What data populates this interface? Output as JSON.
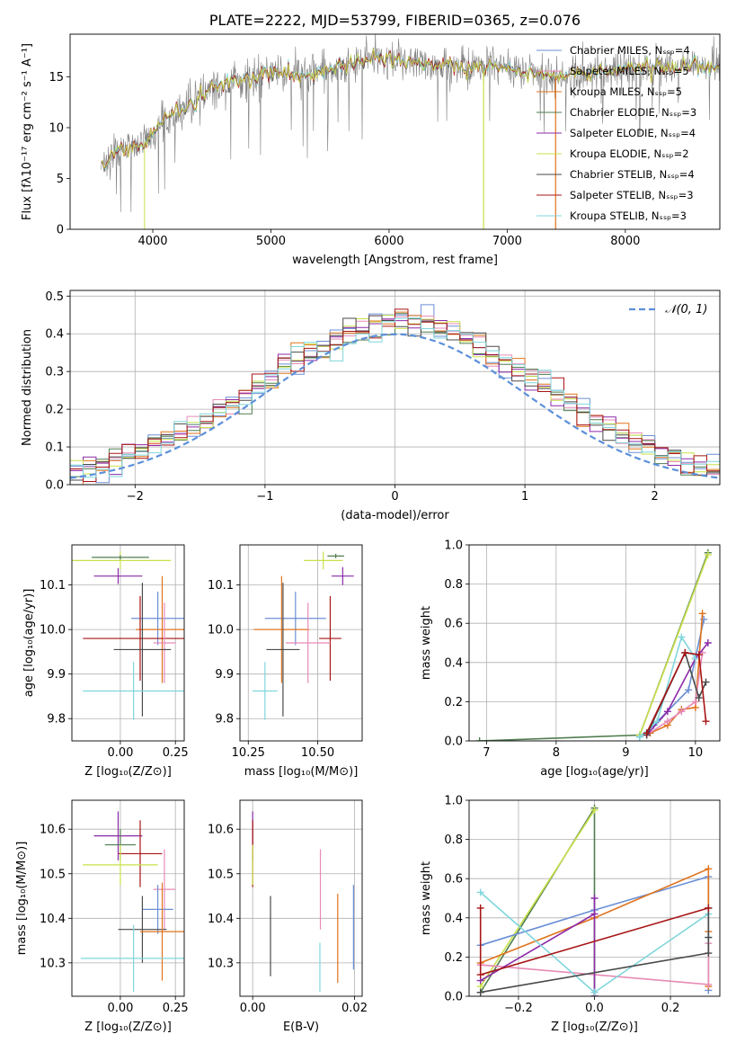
{
  "colors": {
    "Chabrier MILES": "#6b8fd6",
    "Salpeter MILES": "#e78ab6",
    "Kroupa MILES": "#e0731c",
    "Chabrier ELODIE": "#4f7d4f",
    "Salpeter ELODIE": "#8c2aa8",
    "Kroupa ELODIE": "#c9e04a",
    "Chabrier STELIB": "#4a4a4a",
    "Salpeter STELIB": "#a81515",
    "Kroupa STELIB": "#7fd6dc",
    "normal": "#5b8fd9",
    "grid": "#b0b0b0"
  },
  "chart_data": [
    {
      "id": "spectrum",
      "type": "line",
      "title": "PLATE=2222, MJD=53799, FIBERID=0365, z=0.076",
      "xlabel": "wavelength [Angstrom, rest frame]",
      "ylabel": "Flux [fλ10⁻¹⁷ erg cm⁻² s⁻¹ A⁻¹]",
      "xlim": [
        3300,
        8800
      ],
      "ylim": [
        0,
        19.2
      ],
      "xticks": [
        4000,
        5000,
        6000,
        7000,
        8000
      ],
      "yticks": [
        0,
        5,
        10,
        15
      ],
      "grid": false,
      "legend_position": "upper-right",
      "legend": [
        "Chabrier MILES, Nₛₛₚ=4",
        "Salpeter MILES, Nₛₛₚ=5",
        "Kroupa MILES, Nₛₛₚ=5",
        "Chabrier ELODIE, Nₛₛₚ=3",
        "Salpeter ELODIE, Nₛₛₚ=4",
        "Kroupa ELODIE, Nₛₛₚ=2",
        "Chabrier STELIB, Nₛₛₚ=4",
        "Salpeter STELIB, Nₛₛₚ=3",
        "Kroupa STELIB, Nₛₛₚ=3"
      ],
      "continuum": [
        [
          3550,
          6.0
        ],
        [
          3700,
          8.0
        ],
        [
          3850,
          8.0
        ],
        [
          3950,
          8.5
        ],
        [
          4100,
          10.8
        ],
        [
          4300,
          12.0
        ],
        [
          4500,
          14.0
        ],
        [
          4700,
          14.5
        ],
        [
          5000,
          15.5
        ],
        [
          5300,
          15.2
        ],
        [
          5600,
          16.0
        ],
        [
          5900,
          16.8
        ],
        [
          6300,
          16.3
        ],
        [
          6700,
          16.0
        ],
        [
          7000,
          15.8
        ],
        [
          7400,
          15.0
        ],
        [
          7800,
          15.5
        ],
        [
          8200,
          16.0
        ],
        [
          8800,
          16.0
        ]
      ]
    },
    {
      "id": "residuals",
      "type": "step-histogram",
      "xlabel": "(data-model)/error",
      "ylabel": "Normed distribution",
      "xlim": [
        -2.5,
        2.5
      ],
      "ylim": [
        0,
        0.515
      ],
      "xticks": [
        -2,
        -1,
        0,
        1,
        2
      ],
      "xtick_labels": [
        "−2",
        "−1",
        "0",
        "1",
        "2"
      ],
      "yticks": [
        0.0,
        0.1,
        0.2,
        0.3,
        0.4,
        0.5
      ],
      "grid": true,
      "legend": [
        "𝒩(0, 1)"
      ],
      "bin_width": 0.1,
      "reference_curve": "normal(0,1)"
    },
    {
      "id": "age-vs-Z",
      "type": "errorbar",
      "xlabel": "Z [log₁₀(Z/Z⊙)]",
      "ylabel": "age  [log₁₀(age/yr)]",
      "xlim": [
        -0.22,
        0.29
      ],
      "ylim": [
        9.75,
        10.19
      ],
      "xticks": [
        0.0,
        0.25
      ],
      "xtick_labels": [
        "0.00",
        "0.25"
      ],
      "yticks": [
        9.8,
        9.9,
        10.0,
        10.1
      ],
      "ytick_labels": [
        "9.8",
        "9.9",
        "10.0",
        "10.1"
      ],
      "grid": true,
      "points": [
        {
          "model": "Kroupa ELODIE",
          "x": 0.0,
          "xerr": 0.23,
          "y": 10.155,
          "yerr": 0.02
        },
        {
          "model": "Chabrier ELODIE",
          "x": 0.0,
          "xerr": 0.13,
          "y": 10.162,
          "yerr": 0.005
        },
        {
          "model": "Salpeter ELODIE",
          "x": -0.01,
          "xerr": 0.11,
          "y": 10.12,
          "yerr": 0.018
        },
        {
          "model": "Chabrier MILES",
          "x": 0.17,
          "xerr": 0.12,
          "y": 10.025,
          "yerr": 0.06
        },
        {
          "model": "Kroupa MILES",
          "x": 0.19,
          "xerr": 0.12,
          "y": 10.0,
          "yerr": 0.12
        },
        {
          "model": "Salpeter STELIB",
          "x": 0.09,
          "xerr": 0.26,
          "y": 9.98,
          "yerr": 0.095
        },
        {
          "model": "Salpeter MILES",
          "x": 0.2,
          "xerr": 0.05,
          "y": 9.97,
          "yerr": 0.09
        },
        {
          "model": "Chabrier STELIB",
          "x": 0.1,
          "xerr": 0.13,
          "y": 9.955,
          "yerr": 0.15
        },
        {
          "model": "Kroupa STELIB",
          "x": 0.06,
          "xerr": 0.23,
          "y": 9.862,
          "yerr": 0.065
        }
      ]
    },
    {
      "id": "age-vs-mass",
      "type": "errorbar",
      "xlabel": "mass [log₁₀(M/M⊙)]",
      "ylabel": "",
      "xlim": [
        10.22,
        10.66
      ],
      "ylim": [
        9.75,
        10.19
      ],
      "xticks": [
        10.25,
        10.5
      ],
      "xtick_labels": [
        "10.25",
        "10.50"
      ],
      "yticks": [
        9.8,
        9.9,
        10.0,
        10.1
      ],
      "ytick_labels": [
        "9.8",
        "9.9",
        "10.0",
        "10.1"
      ],
      "grid": true,
      "points": [
        {
          "model": "Kroupa ELODIE",
          "x": 10.52,
          "xerr": 0.07,
          "y": 10.155,
          "yerr": 0.02
        },
        {
          "model": "Chabrier ELODIE",
          "x": 10.565,
          "xerr": 0.03,
          "y": 10.165,
          "yerr": 0.005
        },
        {
          "model": "Salpeter ELODIE",
          "x": 10.59,
          "xerr": 0.04,
          "y": 10.12,
          "yerr": 0.02
        },
        {
          "model": "Chabrier MILES",
          "x": 10.42,
          "xerr": 0.11,
          "y": 10.025,
          "yerr": 0.06
        },
        {
          "model": "Kroupa MILES",
          "x": 10.37,
          "xerr": 0.1,
          "y": 10.0,
          "yerr": 0.12
        },
        {
          "model": "Salpeter STELIB",
          "x": 10.545,
          "xerr": 0.04,
          "y": 9.98,
          "yerr": 0.095
        },
        {
          "model": "Salpeter MILES",
          "x": 10.465,
          "xerr": 0.08,
          "y": 9.97,
          "yerr": 0.09
        },
        {
          "model": "Chabrier STELIB",
          "x": 10.375,
          "xerr": 0.06,
          "y": 9.955,
          "yerr": 0.15
        },
        {
          "model": "Kroupa STELIB",
          "x": 10.31,
          "xerr": 0.045,
          "y": 9.862,
          "yerr": 0.065
        }
      ]
    },
    {
      "id": "mass-weight-vs-age",
      "type": "line",
      "xlabel": "age  [log₁₀(age/yr)]",
      "ylabel": "mass weight",
      "xlim": [
        6.75,
        10.35
      ],
      "ylim": [
        0,
        1.0
      ],
      "xticks": [
        7,
        8,
        9,
        10
      ],
      "yticks": [
        0.0,
        0.2,
        0.4,
        0.6,
        0.8,
        1.0
      ],
      "grid": true,
      "series": [
        {
          "model": "Chabrier ELODIE",
          "x": [
            6.9,
            9.2,
            10.18
          ],
          "y": [
            0.0,
            0.03,
            0.96
          ]
        },
        {
          "model": "Kroupa ELODIE",
          "x": [
            9.2,
            10.18
          ],
          "y": [
            0.03,
            0.95
          ]
        },
        {
          "model": "Chabrier MILES",
          "x": [
            9.2,
            9.4,
            9.9,
            10.12
          ],
          "y": [
            0.02,
            0.08,
            0.26,
            0.62
          ]
        },
        {
          "model": "Kroupa MILES",
          "x": [
            9.35,
            9.6,
            9.8,
            10.0,
            10.1
          ],
          "y": [
            0.04,
            0.08,
            0.16,
            0.17,
            0.65
          ]
        },
        {
          "model": "Salpeter MILES",
          "x": [
            9.3,
            9.6,
            9.8,
            10.0,
            10.1
          ],
          "y": [
            0.03,
            0.1,
            0.15,
            0.2,
            0.45
          ]
        },
        {
          "model": "Salpeter ELODIE",
          "x": [
            9.3,
            9.6,
            10.0,
            10.18
          ],
          "y": [
            0.03,
            0.15,
            0.42,
            0.5
          ]
        },
        {
          "model": "Kroupa STELIB",
          "x": [
            9.2,
            9.45,
            9.8,
            10.0
          ],
          "y": [
            0.02,
            0.1,
            0.53,
            0.42
          ]
        },
        {
          "model": "Chabrier STELIB",
          "x": [
            9.3,
            9.85,
            10.05,
            10.15
          ],
          "y": [
            0.03,
            0.45,
            0.22,
            0.3
          ]
        },
        {
          "model": "Salpeter STELIB",
          "x": [
            9.3,
            9.85,
            10.05,
            10.15
          ],
          "y": [
            0.04,
            0.45,
            0.44,
            0.1
          ]
        }
      ]
    },
    {
      "id": "mass-vs-Z",
      "type": "errorbar",
      "xlabel": "Z [log₁₀(Z/Z⊙)]",
      "ylabel": "mass [log₁₀(M/M⊙)]",
      "xlim": [
        -0.22,
        0.29
      ],
      "ylim": [
        10.225,
        10.665
      ],
      "xticks": [
        0.0,
        0.25
      ],
      "xtick_labels": [
        "0.00",
        "0.25"
      ],
      "yticks": [
        10.3,
        10.4,
        10.5,
        10.6
      ],
      "ytick_labels": [
        "10.3",
        "10.4",
        "10.5",
        "10.6"
      ],
      "grid": true,
      "points": [
        {
          "model": "Salpeter ELODIE",
          "x": -0.01,
          "xerr": 0.11,
          "y": 10.585,
          "yerr": 0.055
        },
        {
          "model": "Chabrier ELODIE",
          "x": 0.0,
          "xerr": 0.07,
          "y": 10.565,
          "yerr": 0.035
        },
        {
          "model": "Salpeter STELIB",
          "x": 0.09,
          "xerr": 0.1,
          "y": 10.545,
          "yerr": 0.075
        },
        {
          "model": "Kroupa ELODIE",
          "x": 0.0,
          "xerr": 0.17,
          "y": 10.52,
          "yerr": 0.045
        },
        {
          "model": "Salpeter MILES",
          "x": 0.2,
          "xerr": 0.05,
          "y": 10.465,
          "yerr": 0.09
        },
        {
          "model": "Chabrier MILES",
          "x": 0.17,
          "xerr": 0.07,
          "y": 10.42,
          "yerr": 0.055
        },
        {
          "model": "Chabrier STELIB",
          "x": 0.1,
          "xerr": 0.11,
          "y": 10.375,
          "yerr": 0.075
        },
        {
          "model": "Kroupa MILES",
          "x": 0.19,
          "xerr": 0.1,
          "y": 10.37,
          "yerr": 0.11
        },
        {
          "model": "Kroupa STELIB",
          "x": 0.06,
          "xerr": 0.24,
          "y": 10.31,
          "yerr": 0.075
        }
      ]
    },
    {
      "id": "mass-vs-EBV",
      "type": "errorbar",
      "xlabel": "E(B-V)",
      "ylabel": "",
      "xlim": [
        -0.0025,
        0.0215
      ],
      "ylim": [
        10.225,
        10.665
      ],
      "xticks": [
        0.0,
        0.02
      ],
      "xtick_labels": [
        "0.00",
        "0.02"
      ],
      "yticks": [
        10.3,
        10.4,
        10.5,
        10.6
      ],
      "ytick_labels": [
        "10.3",
        "10.4",
        "10.5",
        "10.6"
      ],
      "grid": true,
      "points": [
        {
          "model": "Salpeter ELODIE",
          "x": 0.0,
          "xerr": 0,
          "y": 10.585,
          "yerr": 0.055
        },
        {
          "model": "Salpeter STELIB",
          "x": 0.0,
          "xerr": 0,
          "y": 10.545,
          "yerr": 0.075
        },
        {
          "model": "Kroupa ELODIE",
          "x": 0.0,
          "xerr": 0,
          "y": 10.52,
          "yerr": 0.045
        },
        {
          "model": "Chabrier STELIB",
          "x": 0.0035,
          "xerr": 0,
          "y": 10.36,
          "yerr": 0.09
        },
        {
          "model": "Salpeter MILES",
          "x": 0.0133,
          "xerr": 0,
          "y": 10.465,
          "yerr": 0.09
        },
        {
          "model": "Kroupa STELIB",
          "x": 0.0132,
          "xerr": 0,
          "y": 10.29,
          "yerr": 0.055
        },
        {
          "model": "Kroupa MILES",
          "x": 0.0167,
          "xerr": 0,
          "y": 10.355,
          "yerr": 0.1
        },
        {
          "model": "Chabrier MILES",
          "x": 0.0198,
          "xerr": 0,
          "y": 10.38,
          "yerr": 0.095
        }
      ]
    },
    {
      "id": "mass-weight-vs-Z",
      "type": "line",
      "xlabel": "Z [log₁₀(Z/Z⊙)]",
      "ylabel": "mass weight",
      "xlim": [
        -0.33,
        0.33
      ],
      "ylim": [
        0,
        1.0
      ],
      "xticks": [
        -0.2,
        0.0,
        0.2
      ],
      "xtick_labels": [
        "−0.2",
        "0.0",
        "0.2"
      ],
      "yticks": [
        0.0,
        0.2,
        0.4,
        0.6,
        0.8,
        1.0
      ],
      "grid": true,
      "series": [
        {
          "model": "Chabrier ELODIE",
          "x": [
            -0.3,
            0.0,
            0.0
          ],
          "y": [
            0.02,
            0.96,
            0.0
          ]
        },
        {
          "model": "Kroupa ELODIE",
          "x": [
            -0.3,
            0.0
          ],
          "y": [
            0.05,
            0.95
          ]
        },
        {
          "model": "Chabrier MILES",
          "x": [
            -0.3,
            0.0,
            0.3,
            0.3
          ],
          "y": [
            0.26,
            0.44,
            0.61,
            0.03
          ]
        },
        {
          "model": "Kroupa MILES",
          "x": [
            -0.3,
            0.0,
            0.3,
            0.3,
            0.3
          ],
          "y": [
            0.17,
            0.4,
            0.65,
            0.33,
            0.05
          ]
        },
        {
          "model": "Salpeter MILES",
          "x": [
            -0.3,
            0.3,
            0.3
          ],
          "y": [
            0.16,
            0.06,
            0.27
          ]
        },
        {
          "model": "Salpeter ELODIE",
          "x": [
            -0.3,
            0.0,
            0.0,
            0.0
          ],
          "y": [
            0.08,
            0.42,
            0.5,
            0.0
          ]
        },
        {
          "model": "Kroupa STELIB",
          "x": [
            -0.3,
            0.0,
            0.3,
            0.3
          ],
          "y": [
            0.53,
            0.02,
            0.42,
            0.3
          ]
        },
        {
          "model": "Chabrier STELIB",
          "x": [
            -0.3,
            0.3,
            0.3,
            0.3
          ],
          "y": [
            0.02,
            0.22,
            0.3,
            0.45
          ]
        },
        {
          "model": "Salpeter STELIB",
          "x": [
            -0.3,
            -0.3,
            0.3
          ],
          "y": [
            0.45,
            0.11,
            0.45
          ]
        }
      ]
    }
  ]
}
